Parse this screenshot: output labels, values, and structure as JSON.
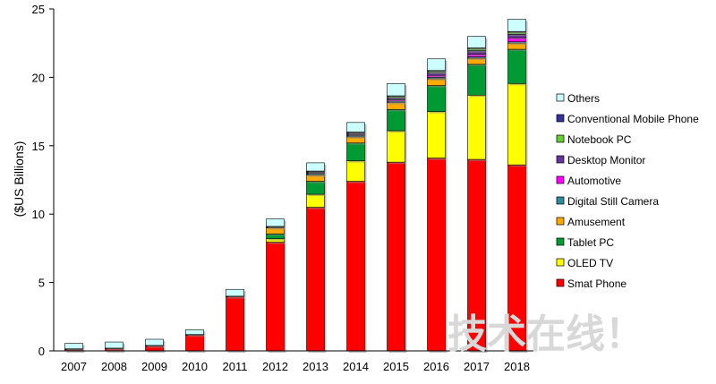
{
  "chart_data": {
    "type": "bar",
    "stacked": true,
    "ylabel": "($US Billions)",
    "ylim": [
      0,
      25
    ],
    "yticks": [
      "0",
      "5",
      "10",
      "15",
      "20",
      "25"
    ],
    "grid": false,
    "legend_position": "right",
    "categories": [
      "2007",
      "2008",
      "2009",
      "2010",
      "2011",
      "2012",
      "2013",
      "2014",
      "2015",
      "2016",
      "2017",
      "2018"
    ],
    "series": [
      {
        "name": "Smat Phone",
        "color": "#ff0000",
        "values": [
          0.1,
          0.15,
          0.35,
          1.15,
          3.95,
          7.95,
          10.5,
          12.4,
          13.8,
          14.1,
          14.0,
          13.6
        ]
      },
      {
        "name": "OLED TV",
        "color": "#ffff00",
        "values": [
          0,
          0,
          0,
          0,
          0,
          0.25,
          0.95,
          1.5,
          2.3,
          3.4,
          4.7,
          5.95
        ]
      },
      {
        "name": "Tablet PC",
        "color": "#009933",
        "values": [
          0,
          0,
          0,
          0,
          0,
          0.35,
          0.95,
          1.3,
          1.55,
          1.9,
          2.25,
          2.5
        ]
      },
      {
        "name": "Amusement",
        "color": "#ffaa00",
        "values": [
          0,
          0,
          0,
          0,
          0,
          0.45,
          0.45,
          0.45,
          0.5,
          0.5,
          0.45,
          0.45
        ]
      },
      {
        "name": "Digital Still Camera",
        "color": "#2e8b9a",
        "values": [
          0,
          0,
          0,
          0,
          0,
          0.05,
          0.1,
          0.1,
          0.1,
          0.1,
          0.1,
          0.1
        ]
      },
      {
        "name": "Automotive",
        "color": "#ff00ff",
        "values": [
          0,
          0,
          0,
          0,
          0,
          0,
          0.05,
          0.05,
          0.1,
          0.15,
          0.2,
          0.3
        ]
      },
      {
        "name": "Desktop Monitor",
        "color": "#663399",
        "values": [
          0,
          0,
          0,
          0,
          0,
          0,
          0.05,
          0.1,
          0.15,
          0.2,
          0.25,
          0.25
        ]
      },
      {
        "name": "Notebook PC",
        "color": "#66cc33",
        "values": [
          0,
          0,
          0,
          0,
          0,
          0,
          0.05,
          0.05,
          0.1,
          0.1,
          0.15,
          0.15
        ]
      },
      {
        "name": "Conventional Mobile Phone",
        "color": "#333399",
        "values": [
          0.05,
          0.05,
          0.05,
          0.05,
          0.05,
          0.05,
          0.05,
          0.05,
          0.05,
          0.05,
          0.05,
          0.05
        ]
      },
      {
        "name": "Others",
        "color": "#ccffff",
        "values": [
          0.4,
          0.45,
          0.45,
          0.35,
          0.5,
          0.55,
          0.6,
          0.7,
          0.9,
          0.85,
          0.85,
          0.9
        ]
      }
    ]
  },
  "watermark": {
    "text": "技术在线！"
  }
}
